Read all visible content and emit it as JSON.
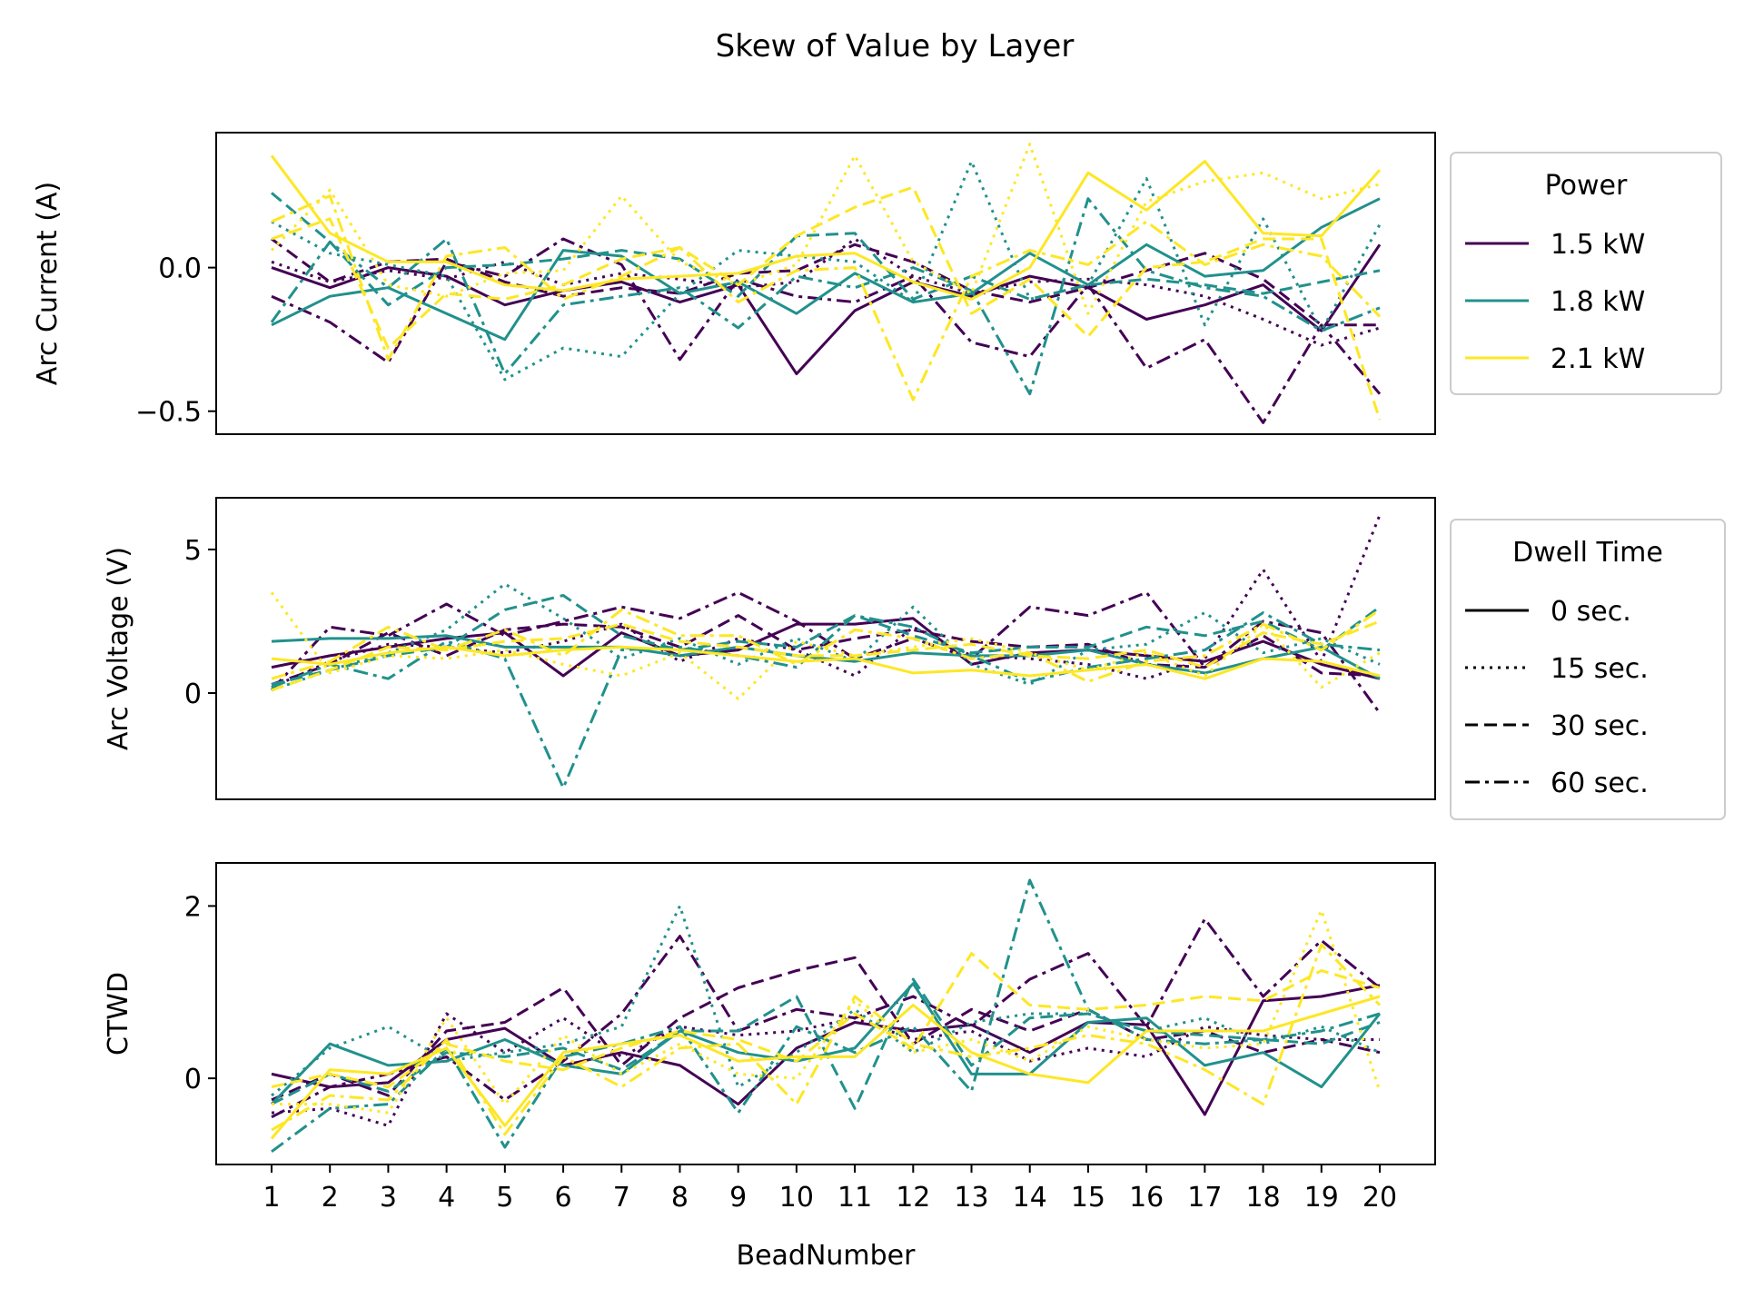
{
  "figure": {
    "title": "Skew of Value by Layer"
  },
  "colors": {
    "1.5 kW": "#440154",
    "1.8 kW": "#21918c",
    "2.1 kW": "#fde725"
  },
  "dash_styles": {
    "0 sec.": "solid",
    "15 sec.": "dotted",
    "30 sec.": "dashed",
    "60 sec.": "dashdot"
  },
  "legends": {
    "power": {
      "title": "Power",
      "items": [
        "1.5 kW",
        "1.8 kW",
        "2.1 kW"
      ]
    },
    "dwell": {
      "title": "Dwell Time",
      "items": [
        "0 sec.",
        "15 sec.",
        "30 sec.",
        "60 sec."
      ]
    }
  },
  "chart_data": [
    {
      "type": "line",
      "ylabel": "Arc Current (A)",
      "xlabel": "",
      "ylim": [
        -0.58,
        0.47
      ],
      "yticks": [
        -0.5,
        0.0
      ],
      "ytick_labels": [
        "−0.5",
        "0.0"
      ],
      "x": [
        1,
        2,
        3,
        4,
        5,
        6,
        7,
        8,
        9,
        10,
        11,
        12,
        13,
        14,
        15,
        16,
        17,
        18,
        19,
        20
      ],
      "series": [
        {
          "power": "1.5 kW",
          "dwell": "0 sec.",
          "values": [
            0.0,
            -0.07,
            0.0,
            -0.03,
            -0.13,
            -0.08,
            -0.05,
            -0.12,
            -0.06,
            -0.37,
            -0.15,
            -0.05,
            -0.1,
            -0.03,
            -0.07,
            -0.18,
            -0.13,
            -0.06,
            -0.22,
            0.08
          ]
        },
        {
          "power": "1.5 kW",
          "dwell": "15 sec.",
          "values": [
            0.02,
            -0.05,
            -0.01,
            -0.04,
            0.02,
            -0.06,
            -0.02,
            -0.04,
            -0.07,
            -0.05,
            0.1,
            -0.03,
            -0.09,
            -0.05,
            -0.04,
            -0.06,
            -0.1,
            -0.18,
            -0.27,
            -0.21
          ]
        },
        {
          "power": "1.5 kW",
          "dwell": "30 sec.",
          "values": [
            0.1,
            -0.05,
            0.02,
            0.03,
            -0.05,
            -0.1,
            -0.07,
            -0.09,
            -0.02,
            -0.01,
            0.08,
            0.02,
            -0.08,
            -0.12,
            -0.07,
            -0.01,
            0.05,
            -0.04,
            -0.2,
            -0.2
          ]
        },
        {
          "power": "1.5 kW",
          "dwell": "60 sec.",
          "values": [
            -0.1,
            -0.19,
            -0.33,
            0.02,
            -0.03,
            0.1,
            0.01,
            -0.32,
            -0.04,
            -0.1,
            -0.12,
            -0.03,
            -0.26,
            -0.31,
            -0.06,
            -0.35,
            -0.25,
            -0.54,
            -0.2,
            -0.44
          ]
        },
        {
          "power": "1.8 kW",
          "dwell": "0 sec.",
          "values": [
            -0.2,
            -0.1,
            -0.07,
            -0.16,
            -0.25,
            0.06,
            0.04,
            -0.09,
            -0.05,
            -0.16,
            -0.02,
            -0.12,
            -0.09,
            0.05,
            -0.06,
            0.08,
            -0.03,
            -0.01,
            0.14,
            0.24
          ]
        },
        {
          "power": "1.8 kW",
          "dwell": "15 sec.",
          "values": [
            0.16,
            0.05,
            0.01,
            -0.03,
            -0.39,
            -0.28,
            -0.31,
            -0.09,
            0.06,
            0.04,
            0.02,
            -0.12,
            0.37,
            -0.11,
            -0.06,
            0.31,
            -0.2,
            0.17,
            -0.22,
            0.15
          ]
        },
        {
          "power": "1.8 kW",
          "dwell": "30 sec.",
          "values": [
            0.26,
            0.09,
            -0.13,
            0.0,
            0.01,
            0.03,
            0.06,
            0.03,
            -0.1,
            0.11,
            0.12,
            -0.11,
            -0.03,
            -0.11,
            -0.06,
            -0.04,
            -0.06,
            -0.09,
            -0.05,
            -0.01
          ]
        },
        {
          "power": "1.8 kW",
          "dwell": "60 sec.",
          "values": [
            -0.19,
            0.09,
            -0.07,
            0.1,
            -0.37,
            -0.13,
            -0.1,
            -0.07,
            -0.21,
            -0.03,
            -0.07,
            0.0,
            -0.08,
            -0.44,
            0.24,
            -0.01,
            -0.07,
            -0.1,
            -0.22,
            -0.14
          ]
        },
        {
          "power": "2.1 kW",
          "dwell": "0 sec.",
          "values": [
            0.39,
            0.12,
            0.02,
            0.02,
            -0.06,
            -0.08,
            -0.04,
            -0.03,
            -0.02,
            0.04,
            0.05,
            -0.05,
            -0.11,
            0.0,
            0.33,
            0.2,
            0.37,
            0.12,
            0.11,
            0.34
          ]
        },
        {
          "power": "2.1 kW",
          "dwell": "15 sec.",
          "values": [
            0.06,
            0.27,
            -0.06,
            -0.1,
            -0.02,
            -0.01,
            0.25,
            0.02,
            -0.06,
            0.01,
            0.39,
            0.02,
            -0.09,
            0.43,
            -0.16,
            0.23,
            0.3,
            0.33,
            0.24,
            0.29
          ]
        },
        {
          "power": "2.1 kW",
          "dwell": "30 sec.",
          "values": [
            0.1,
            0.17,
            -0.28,
            -0.09,
            -0.11,
            -0.06,
            0.03,
            0.07,
            -0.06,
            0.11,
            0.21,
            0.28,
            -0.16,
            -0.04,
            -0.24,
            0.0,
            0.02,
            0.1,
            0.1,
            -0.53
          ]
        },
        {
          "power": "2.1 kW",
          "dwell": "60 sec.",
          "values": [
            0.16,
            0.25,
            -0.32,
            0.04,
            0.07,
            -0.11,
            -0.03,
            0.07,
            -0.12,
            -0.01,
            0.0,
            -0.46,
            -0.03,
            0.06,
            0.01,
            0.16,
            0.01,
            0.08,
            0.04,
            -0.17
          ]
        }
      ]
    },
    {
      "type": "line",
      "ylabel": "Arc Voltage (V)",
      "xlabel": "",
      "ylim": [
        -3.7,
        6.8
      ],
      "yticks": [
        0,
        5
      ],
      "ytick_labels": [
        "0",
        "5"
      ],
      "x": [
        1,
        2,
        3,
        4,
        5,
        6,
        7,
        8,
        9,
        10,
        11,
        12,
        13,
        14,
        15,
        16,
        17,
        18,
        19,
        20
      ],
      "series": [
        {
          "power": "1.5 kW",
          "dwell": "0 sec.",
          "values": [
            0.9,
            1.3,
            1.6,
            1.9,
            2.1,
            0.6,
            2.1,
            1.3,
            1.5,
            2.4,
            2.4,
            2.6,
            1.0,
            1.4,
            1.5,
            1.3,
            1.1,
            1.8,
            1.0,
            0.5
          ]
        },
        {
          "power": "1.5 kW",
          "dwell": "15 sec.",
          "values": [
            0.2,
            1.1,
            1.7,
            1.6,
            1.4,
            1.8,
            2.4,
            1.1,
            1.9,
            1.5,
            0.6,
            2.3,
            1.3,
            1.2,
            1.0,
            0.5,
            1.2,
            4.3,
            1.1,
            6.2
          ]
        },
        {
          "power": "1.5 kW",
          "dwell": "30 sec.",
          "values": [
            0.3,
            1.0,
            2.1,
            1.3,
            2.2,
            2.4,
            2.3,
            1.6,
            2.7,
            1.5,
            1.9,
            2.2,
            1.8,
            1.6,
            1.7,
            1.0,
            0.9,
            2.0,
            0.7,
            0.6
          ]
        },
        {
          "power": "1.5 kW",
          "dwell": "60 sec.",
          "values": [
            0.1,
            2.3,
            2.0,
            3.1,
            2.0,
            2.5,
            3.0,
            2.6,
            3.5,
            2.5,
            1.2,
            1.9,
            1.2,
            3.0,
            2.7,
            3.5,
            0.9,
            2.5,
            2.1,
            -0.7
          ]
        },
        {
          "power": "1.8 kW",
          "dwell": "0 sec.",
          "values": [
            1.8,
            1.9,
            1.9,
            2.0,
            1.6,
            1.6,
            1.6,
            1.3,
            1.6,
            1.3,
            1.1,
            1.4,
            1.3,
            1.3,
            1.5,
            1.0,
            0.7,
            1.2,
            1.6,
            0.5
          ]
        },
        {
          "power": "1.8 kW",
          "dwell": "15 sec.",
          "values": [
            0.1,
            0.8,
            1.4,
            2.2,
            3.8,
            2.6,
            1.2,
            1.9,
            1.0,
            1.9,
            1.1,
            3.0,
            1.0,
            0.3,
            1.5,
            1.7,
            2.8,
            1.4,
            1.9,
            1.0
          ]
        },
        {
          "power": "1.8 kW",
          "dwell": "30 sec.",
          "values": [
            0.3,
            0.8,
            1.3,
            1.6,
            2.9,
            3.4,
            2.0,
            1.5,
            1.8,
            1.6,
            2.7,
            2.0,
            1.4,
            1.6,
            1.6,
            2.3,
            2.0,
            2.5,
            1.5,
            3.0
          ]
        },
        {
          "power": "1.8 kW",
          "dwell": "60 sec.",
          "values": [
            0.2,
            1.0,
            0.5,
            1.8,
            1.2,
            -3.3,
            1.5,
            1.6,
            1.3,
            0.9,
            2.7,
            2.3,
            1.3,
            0.4,
            0.9,
            1.2,
            1.5,
            2.8,
            1.7,
            1.5
          ]
        },
        {
          "power": "2.1 kW",
          "dwell": "0 sec.",
          "values": [
            1.2,
            1.0,
            1.4,
            1.6,
            1.3,
            1.5,
            1.6,
            1.5,
            1.3,
            1.1,
            1.2,
            0.7,
            0.8,
            0.6,
            0.8,
            1.0,
            0.5,
            1.2,
            1.1,
            0.6
          ]
        },
        {
          "power": "2.1 kW",
          "dwell": "15 sec.",
          "values": [
            3.5,
            0.7,
            1.3,
            1.2,
            1.5,
            1.0,
            0.6,
            1.4,
            -0.2,
            1.8,
            1.3,
            1.6,
            1.9,
            1.4,
            0.8,
            1.4,
            0.6,
            2.4,
            0.2,
            1.4
          ]
        },
        {
          "power": "2.1 kW",
          "dwell": "30 sec.",
          "values": [
            0.1,
            0.8,
            1.6,
            1.5,
            1.8,
            1.9,
            2.4,
            1.8,
            1.6,
            1.3,
            1.3,
            1.5,
            1.7,
            1.3,
            1.2,
            1.5,
            0.9,
            2.1,
            1.7,
            2.5
          ]
        },
        {
          "power": "2.1 kW",
          "dwell": "60 sec.",
          "values": [
            0.5,
            1.1,
            2.3,
            1.5,
            2.2,
            1.3,
            2.9,
            2.0,
            2.0,
            1.0,
            2.2,
            1.9,
            1.2,
            1.4,
            0.4,
            1.1,
            1.3,
            2.4,
            1.5,
            2.9
          ]
        }
      ]
    },
    {
      "type": "line",
      "ylabel": "CTWD",
      "xlabel": "BeadNumber",
      "ylim": [
        -1.0,
        2.5
      ],
      "yticks": [
        0,
        2
      ],
      "ytick_labels": [
        "0",
        "2"
      ],
      "x": [
        1,
        2,
        3,
        4,
        5,
        6,
        7,
        8,
        9,
        10,
        11,
        12,
        13,
        14,
        15,
        16,
        17,
        18,
        19,
        20
      ],
      "xtick_labels": [
        "1",
        "2",
        "3",
        "4",
        "5",
        "6",
        "7",
        "8",
        "9",
        "10",
        "11",
        "12",
        "13",
        "14",
        "15",
        "16",
        "17",
        "18",
        "19",
        "20"
      ],
      "series": [
        {
          "power": "1.5 kW",
          "dwell": "0 sec.",
          "values": [
            0.05,
            -0.1,
            -0.05,
            0.45,
            0.58,
            0.15,
            0.3,
            0.15,
            -0.3,
            0.35,
            0.65,
            0.55,
            0.62,
            0.3,
            0.65,
            0.62,
            -0.42,
            0.9,
            0.95,
            1.08
          ]
        },
        {
          "power": "1.5 kW",
          "dwell": "15 sec.",
          "values": [
            -0.4,
            -0.35,
            -0.55,
            0.75,
            0.3,
            0.7,
            0.25,
            0.6,
            0.5,
            0.55,
            0.7,
            0.45,
            0.55,
            0.2,
            0.35,
            0.25,
            0.6,
            0.5,
            0.45,
            0.45
          ]
        },
        {
          "power": "1.5 kW",
          "dwell": "30 sec.",
          "values": [
            -0.25,
            0.05,
            -0.2,
            0.55,
            0.65,
            1.05,
            0.15,
            0.7,
            1.05,
            1.25,
            1.4,
            0.4,
            0.8,
            0.55,
            0.8,
            0.45,
            0.55,
            0.3,
            0.45,
            0.3
          ]
        },
        {
          "power": "1.5 kW",
          "dwell": "60 sec.",
          "values": [
            -0.45,
            -0.1,
            0.05,
            0.25,
            -0.25,
            0.2,
            0.75,
            1.65,
            0.55,
            0.8,
            0.7,
            0.95,
            0.6,
            1.15,
            1.45,
            0.6,
            1.85,
            0.95,
            1.6,
            1.05
          ]
        },
        {
          "power": "1.8 kW",
          "dwell": "0 sec.",
          "values": [
            -0.3,
            0.4,
            0.15,
            0.2,
            0.45,
            0.15,
            0.05,
            0.55,
            0.3,
            0.2,
            0.35,
            1.1,
            0.05,
            0.05,
            0.65,
            0.7,
            0.15,
            0.3,
            -0.1,
            0.75
          ]
        },
        {
          "power": "1.8 kW",
          "dwell": "15 sec.",
          "values": [
            -0.2,
            0.35,
            0.6,
            0.2,
            0.3,
            0.4,
            0.6,
            2.0,
            -0.1,
            0.3,
            0.8,
            0.3,
            0.65,
            0.75,
            0.75,
            0.55,
            0.7,
            0.4,
            0.6,
            0.3
          ]
        },
        {
          "power": "1.8 kW",
          "dwell": "30 sec.",
          "values": [
            -0.3,
            0.05,
            -0.15,
            0.3,
            0.25,
            0.35,
            0.1,
            0.55,
            0.55,
            0.95,
            -0.35,
            1.15,
            0.15,
            0.7,
            0.75,
            0.55,
            0.5,
            0.45,
            0.4,
            0.65
          ]
        },
        {
          "power": "1.8 kW",
          "dwell": "60 sec.",
          "values": [
            -0.85,
            -0.35,
            -0.3,
            0.35,
            -0.8,
            0.25,
            0.4,
            0.6,
            -0.4,
            0.6,
            0.3,
            0.6,
            -0.15,
            2.3,
            0.8,
            0.45,
            0.4,
            0.45,
            0.55,
            0.75
          ]
        },
        {
          "power": "2.1 kW",
          "dwell": "0 sec.",
          "values": [
            -0.7,
            0.1,
            0.05,
            0.35,
            -0.55,
            0.3,
            0.4,
            0.5,
            0.2,
            0.25,
            0.25,
            0.85,
            0.3,
            0.05,
            -0.05,
            0.55,
            0.55,
            0.55,
            0.75,
            0.95
          ]
        },
        {
          "power": "2.1 kW",
          "dwell": "15 sec.",
          "values": [
            -0.3,
            -0.3,
            -0.4,
            0.7,
            -0.3,
            0.5,
            0.05,
            0.4,
            0.05,
            0.0,
            0.9,
            0.3,
            0.45,
            0.2,
            0.6,
            0.45,
            0.35,
            0.4,
            1.95,
            -0.15
          ]
        },
        {
          "power": "2.1 kW",
          "dwell": "30 sec.",
          "values": [
            -0.1,
            0.05,
            -0.1,
            0.4,
            0.2,
            0.1,
            0.35,
            0.55,
            0.45,
            0.2,
            0.75,
            0.35,
            1.45,
            0.85,
            0.8,
            0.85,
            0.95,
            0.9,
            1.25,
            1.05
          ]
        },
        {
          "power": "2.1 kW",
          "dwell": "60 sec.",
          "values": [
            -0.6,
            -0.2,
            -0.25,
            0.45,
            -0.65,
            0.25,
            -0.1,
            0.35,
            0.4,
            -0.3,
            0.95,
            0.4,
            0.25,
            0.35,
            0.5,
            0.4,
            0.1,
            -0.3,
            1.55,
            0.85
          ]
        }
      ]
    }
  ]
}
